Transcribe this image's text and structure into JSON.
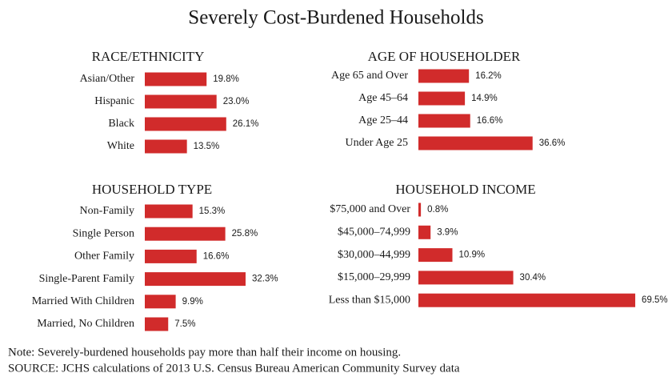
{
  "title": "Severely Cost-Burdened Households",
  "note": "Note: Severely-burdened households pay more than half their income on housing.",
  "source": "SOURCE: JCHS calculations of 2013 U.S. Census Bureau American Community Survey data",
  "chart_data": [
    {
      "type": "bar",
      "title": "RACE/ETHNICITY",
      "color": "#d12b2b",
      "categories": [
        "Asian/Other",
        "Hispanic",
        "Black",
        "White"
      ],
      "values": [
        19.8,
        23.0,
        26.1,
        13.5
      ],
      "value_labels": [
        "19.8%",
        "23.0%",
        "26.1%",
        "13.5%"
      ]
    },
    {
      "type": "bar",
      "title": "AGE OF HOUSEHOLDER",
      "color": "#d12b2b",
      "categories": [
        "Age 65 and Over",
        "Age 45–64",
        "Age 25–44",
        "Under Age 25"
      ],
      "values": [
        16.2,
        14.9,
        16.6,
        36.6
      ],
      "value_labels": [
        "16.2%",
        "14.9%",
        "16.6%",
        "36.6%"
      ]
    },
    {
      "type": "bar",
      "title": "HOUSEHOLD TYPE",
      "color": "#d12b2b",
      "categories": [
        "Non-Family",
        "Single Person",
        "Other Family",
        "Single-Parent Family",
        "Married With Children",
        "Married, No Children"
      ],
      "values": [
        15.3,
        25.8,
        16.6,
        32.3,
        9.9,
        7.5
      ],
      "value_labels": [
        "15.3%",
        "25.8%",
        "16.6%",
        "32.3%",
        "9.9%",
        "7.5%"
      ]
    },
    {
      "type": "bar",
      "title": "HOUSEHOLD INCOME",
      "color": "#d12b2b",
      "categories": [
        "$75,000 and Over",
        "$45,000–74,999",
        "$30,000–44,999",
        "$15,000–29,999",
        "Less than $15,000"
      ],
      "values": [
        0.8,
        3.9,
        10.9,
        30.4,
        69.5
      ],
      "value_labels": [
        "0.8%",
        "3.9%",
        "10.9%",
        "30.4%",
        "69.5%"
      ]
    }
  ]
}
